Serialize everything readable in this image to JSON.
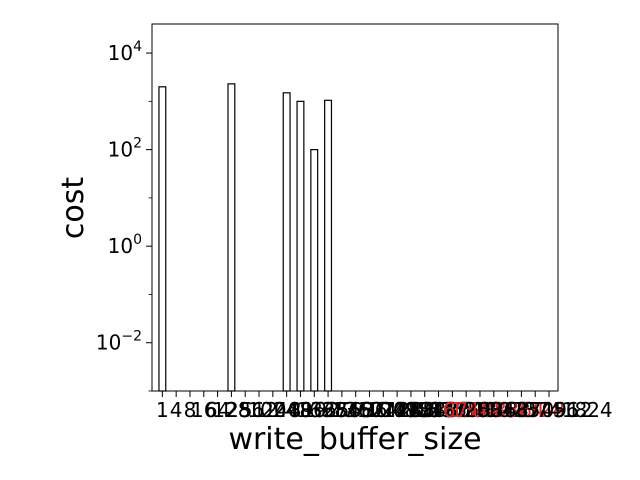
{
  "chart_data": {
    "type": "bar",
    "title": "",
    "xlabel": "write_buffer_size",
    "ylabel": "cost",
    "yscale": "log",
    "ylim": [
      0.001,
      40000
    ],
    "y_ticks": [
      {
        "value": 0.01,
        "base": "10",
        "exp": "−2"
      },
      {
        "value": 1,
        "base": "10",
        "exp": "0"
      },
      {
        "value": 100,
        "base": "10",
        "exp": "2"
      },
      {
        "value": 10000,
        "base": "10",
        "exp": "4"
      }
    ],
    "categories": [
      "1",
      "4",
      "8",
      "16",
      "64",
      "128",
      "256",
      "512",
      "1024",
      "2048",
      "4096",
      "8192",
      "16384",
      "32768",
      "65536",
      "131072",
      "262144",
      "524288",
      "1048576",
      "2097152",
      "4194304",
      "8388608",
      "16777216",
      "33554432",
      "67108864",
      "134217728",
      "268435456",
      "536870912",
      "1073741824"
    ],
    "x_ticks": [
      "1",
      "4",
      "8",
      "16",
      "64",
      "128",
      "256",
      "512",
      "1024",
      "2048",
      "4096",
      "8192",
      "16384",
      "32768",
      "65536",
      "131072",
      "262144",
      "524288",
      "1048576",
      "2097152",
      "4194304",
      "8388608",
      "16777216",
      "33554432",
      "67108864",
      "134217728",
      "268435456",
      "536870912",
      "1073741824"
    ],
    "highlight_ticks": [
      "67108864",
      "134217728"
    ],
    "values": [
      2000,
      null,
      null,
      null,
      null,
      2300,
      null,
      null,
      null,
      1500,
      1000,
      100,
      1050,
      null,
      null,
      null,
      null,
      null,
      null,
      null,
      null,
      null,
      null,
      null,
      null,
      null,
      null,
      null,
      null
    ],
    "colors": {
      "bar_fill": "#ffffff",
      "bar_edge": "#000000",
      "highlight_tick": "#d62728",
      "text": "#000000"
    },
    "grid": false,
    "legend": "none"
  }
}
